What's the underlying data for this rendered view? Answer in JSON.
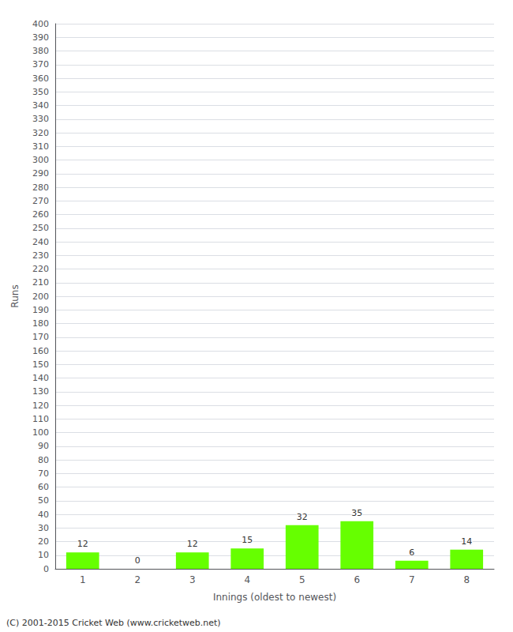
{
  "chart_data": {
    "type": "bar",
    "categories": [
      "1",
      "2",
      "3",
      "4",
      "5",
      "6",
      "7",
      "8"
    ],
    "values": [
      12,
      0,
      12,
      15,
      32,
      35,
      6,
      14
    ],
    "color": "#66ff00",
    "xlabel": "Innings (oldest to newest)",
    "ylabel": "Runs",
    "ylim": [
      0,
      400
    ],
    "yticks": [
      0,
      10,
      20,
      30,
      40,
      50,
      60,
      70,
      80,
      90,
      100,
      110,
      120,
      130,
      140,
      150,
      160,
      170,
      180,
      190,
      200,
      210,
      220,
      230,
      240,
      250,
      260,
      270,
      280,
      290,
      300,
      310,
      320,
      330,
      340,
      350,
      360,
      370,
      380,
      390,
      400
    ],
    "grid": true,
    "data_labels": true,
    "annotations": [
      "(C) 2001-2015 Cricket Web (www.cricketweb.net)"
    ]
  }
}
